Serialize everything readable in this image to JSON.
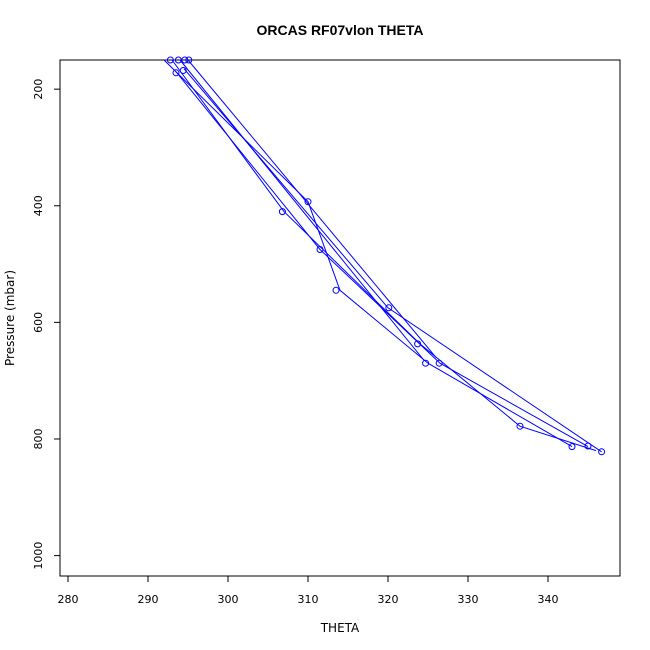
{
  "chart_data": {
    "type": "line",
    "title": "ORCAS RF07vlon THETA",
    "xlabel": "THETA",
    "ylabel": "Pressure (mbar)",
    "xlim": [
      279,
      349
    ],
    "ylim": [
      1035,
      150
    ],
    "y_inverted": true,
    "xticks": [
      280,
      290,
      300,
      310,
      320,
      330,
      340
    ],
    "yticks": [
      200,
      400,
      600,
      800,
      1000
    ],
    "grid": false,
    "legend": "none",
    "series_color": "#0000ff",
    "series": [
      {
        "points": [
          [
            292,
            150
          ],
          [
            310,
            393
          ],
          [
            314,
            545
          ],
          [
            325,
            670
          ],
          [
            343,
            813
          ]
        ],
        "circles": [
          [
            310,
            393
          ],
          [
            313.5,
            545
          ],
          [
            324.7,
            670
          ]
        ]
      },
      {
        "points": [
          [
            293,
            150
          ],
          [
            307,
            410
          ],
          [
            324,
            637
          ],
          [
            336.5,
            778
          ],
          [
            346,
            820
          ]
        ],
        "circles": [
          [
            306.8,
            410
          ],
          [
            323.7,
            637
          ],
          [
            336.5,
            778
          ]
        ]
      },
      {
        "points": [
          [
            293.5,
            170
          ],
          [
            311.5,
            475
          ],
          [
            326.5,
            670
          ],
          [
            345,
            813
          ]
        ],
        "circles": [
          [
            293.5,
            172
          ],
          [
            311.5,
            475
          ],
          [
            326.4,
            670
          ]
        ]
      },
      {
        "points": [
          [
            294.5,
            165
          ],
          [
            320,
            575
          ],
          [
            346.7,
            822
          ]
        ],
        "circles": [
          [
            294.4,
            168
          ],
          [
            320.1,
            575
          ],
          [
            346.7,
            822
          ]
        ]
      },
      {
        "points": [
          [
            294,
            150
          ],
          [
            324.5,
            665
          ]
        ],
        "circles": [
          [
            343,
            813
          ],
          [
            345,
            812
          ]
        ]
      },
      {
        "points": [
          [
            295,
            150
          ],
          [
            326,
            660
          ]
        ],
        "circles": [
          [
            293.8,
            150
          ],
          [
            294.6,
            150
          ],
          [
            295.1,
            150
          ],
          [
            292.8,
            150
          ]
        ]
      }
    ]
  }
}
